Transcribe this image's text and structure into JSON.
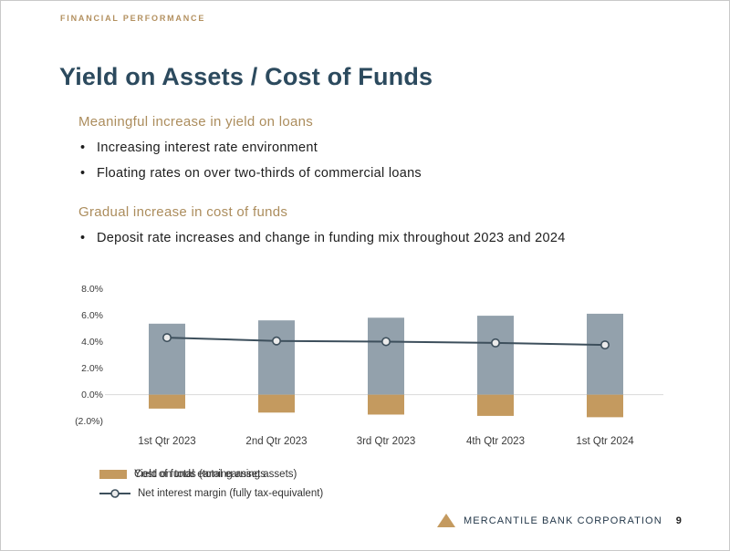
{
  "slide": {
    "eyebrow": "FINANCIAL PERFORMANCE",
    "title": "Yield on Assets / Cost of Funds",
    "bullet_char": "•",
    "sections": [
      {
        "heading": "Meaningful increase in yield on loans",
        "bullets": [
          "Increasing interest rate environment",
          "Floating rates on over two-thirds of commercial loans"
        ]
      },
      {
        "heading": "Gradual increase in cost of funds",
        "bullets": [
          "Deposit rate increases and change in funding mix throughout 2023 and 2024"
        ]
      }
    ],
    "footer": {
      "company": "MERCANTILE BANK CORPORATION",
      "page_number": "9"
    }
  },
  "colors": {
    "accent_tan": "#ac8d5d",
    "bar_gray": "#93a1ac",
    "bar_tan": "#c49a5f",
    "line_dark": "#3d4f5c",
    "title_navy": "#2c4a5e",
    "grid_line": "#d9d9d9",
    "marker_fill": "#ebebeb"
  },
  "chart_data": {
    "type": "bar",
    "subtype": "bar+line combo",
    "categories": [
      "1st Qtr 2023",
      "2nd Qtr 2023",
      "3rd Qtr 2023",
      "4th Qtr 2023",
      "1st Qtr 2024"
    ],
    "series": [
      {
        "name": "Yield on total earning assets",
        "type": "bar",
        "color_key": "bar_gray",
        "values": [
          5.35,
          5.6,
          5.8,
          5.95,
          6.1
        ]
      },
      {
        "name": "Cost of funds (total earning assets)",
        "type": "bar",
        "color_key": "bar_tan",
        "values": [
          -1.05,
          -1.35,
          -1.5,
          -1.6,
          -1.7
        ]
      },
      {
        "name": "Net interest margin (fully tax-equivalent)",
        "type": "line",
        "color_key": "line_dark",
        "values": [
          4.3,
          4.05,
          4.0,
          3.9,
          3.75
        ]
      }
    ],
    "y_ticks": [
      "8.0%",
      "6.0%",
      "4.0%",
      "2.0%",
      "0.0%",
      "(2.0%)"
    ],
    "y_tick_values": [
      8,
      6,
      4,
      2,
      0,
      -2
    ],
    "ylim": [
      -2.5,
      8.5
    ],
    "grid": "zero-line-only",
    "legend_position": "bottom",
    "title": "",
    "xlabel": "",
    "ylabel": ""
  }
}
